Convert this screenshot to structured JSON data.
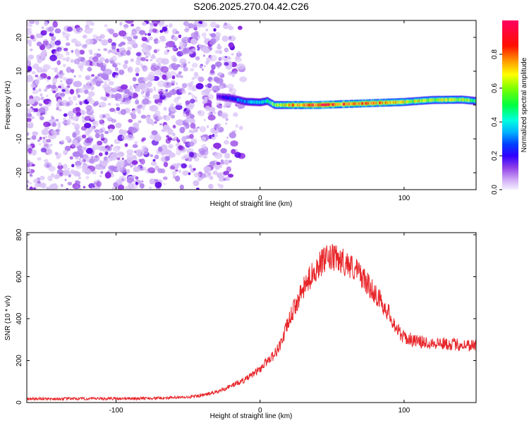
{
  "figure_title": "S206.2025.270.04.42.C26",
  "chart_data": [
    {
      "type": "heatmap",
      "name": "spectrogram",
      "xlabel": "Height of straight line (km)",
      "ylabel": "Frequency (Hz)",
      "xlim": [
        -162,
        150
      ],
      "ylim": [
        -25,
        25
      ],
      "xticks": [
        -100,
        0,
        100
      ],
      "yticks": [
        -20,
        -10,
        0,
        10,
        20
      ],
      "grid": false,
      "colorbar": {
        "label": "Normalized spectral amplitude",
        "range": [
          0,
          1
        ],
        "ticks": [
          0.0,
          0.2,
          0.4,
          0.6,
          0.8
        ],
        "colormap": [
          "#f2f0ff",
          "#c9a8f5",
          "#8a2be2",
          "#5a00e6",
          "#0000ff",
          "#0088ff",
          "#00e5ff",
          "#00ff66",
          "#7fff00",
          "#ffff00",
          "#ff8800",
          "#ff0000",
          "#ff0066"
        ]
      },
      "noise_region_km": [
        -162,
        -25
      ],
      "carrier_line": [
        {
          "x": -30,
          "f": 2.5,
          "amp": 0.25
        },
        {
          "x": -20,
          "f": 2.0,
          "amp": 0.35
        },
        {
          "x": -10,
          "f": 1.0,
          "amp": 0.45
        },
        {
          "x": 0,
          "f": 0.8,
          "amp": 0.5
        },
        {
          "x": 5,
          "f": 1.2,
          "amp": 0.55
        },
        {
          "x": 10,
          "f": 0.0,
          "amp": 0.65
        },
        {
          "x": 20,
          "f": 0.0,
          "amp": 0.8
        },
        {
          "x": 40,
          "f": 0.0,
          "amp": 0.95
        },
        {
          "x": 60,
          "f": 0.3,
          "amp": 0.9
        },
        {
          "x": 80,
          "f": 0.6,
          "amp": 0.85
        },
        {
          "x": 100,
          "f": 0.9,
          "amp": 0.75
        },
        {
          "x": 120,
          "f": 1.5,
          "amp": 0.7
        },
        {
          "x": 140,
          "f": 1.6,
          "amp": 0.7
        },
        {
          "x": 150,
          "f": 1.2,
          "amp": 0.65
        }
      ]
    },
    {
      "type": "line",
      "name": "snr",
      "xlabel": "Height of straight line (km)",
      "ylabel": "SNR (10 * v/v)",
      "xlim": [
        -162,
        150
      ],
      "ylim": [
        0,
        810
      ],
      "xticks": [
        -100,
        0,
        100
      ],
      "yticks": [
        0,
        200,
        400,
        600,
        800
      ],
      "grid": false,
      "color": "#e8262a",
      "series": [
        {
          "name": "SNR",
          "x": [
            -162,
            -120,
            -80,
            -50,
            -40,
            -30,
            -20,
            -10,
            0,
            5,
            10,
            15,
            20,
            25,
            30,
            35,
            40,
            45,
            50,
            55,
            60,
            65,
            70,
            75,
            80,
            85,
            90,
            95,
            100,
            110,
            120,
            130,
            140,
            150
          ],
          "values": [
            18,
            18,
            20,
            25,
            35,
            50,
            80,
            110,
            160,
            200,
            230,
            290,
            390,
            470,
            540,
            600,
            650,
            680,
            690,
            680,
            665,
            640,
            610,
            560,
            520,
            470,
            420,
            350,
            310,
            290,
            285,
            280,
            275,
            275
          ]
        }
      ]
    }
  ]
}
